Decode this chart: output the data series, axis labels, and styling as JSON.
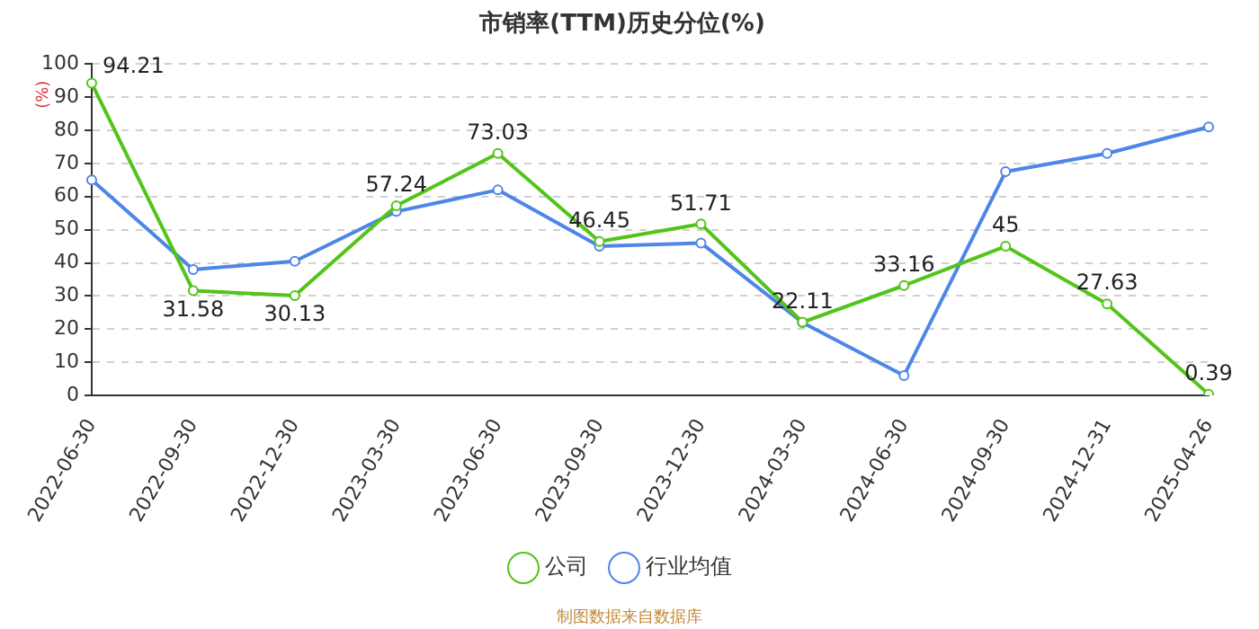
{
  "chart_data": {
    "type": "line",
    "title": "市销率(TTM)历史分位(%)",
    "ylabel": "(%)",
    "categories": [
      "2022-06-30",
      "2022-09-30",
      "2022-12-30",
      "2023-03-30",
      "2023-06-30",
      "2023-09-30",
      "2023-12-30",
      "2024-03-30",
      "2024-06-30",
      "2024-09-30",
      "2024-12-31",
      "2025-04-26"
    ],
    "series": [
      {
        "name": "公司",
        "color": "#52c41a",
        "values": [
          94.21,
          31.58,
          30.13,
          57.24,
          73.03,
          46.45,
          51.71,
          22.11,
          33.16,
          45,
          27.63,
          0.39
        ],
        "value_labels": [
          "94.21",
          "31.58",
          "30.13",
          "57.24",
          "73.03",
          "46.45",
          "51.71",
          "22.11",
          "33.16",
          "45",
          "27.63",
          "0.39"
        ]
      },
      {
        "name": "行业均值",
        "color": "#4e86e8",
        "values": [
          65,
          38,
          40.5,
          55.5,
          62,
          45,
          46,
          22,
          6,
          67.5,
          73,
          81
        ]
      }
    ],
    "ylim": [
      0,
      100
    ],
    "yticks": [
      0,
      10,
      20,
      30,
      40,
      50,
      60,
      70,
      80,
      90,
      100
    ],
    "grid": "y",
    "legend": "bottom",
    "marker": "circle",
    "line_style": "solid",
    "annotations": [
      "制图数据来自数据库"
    ]
  }
}
